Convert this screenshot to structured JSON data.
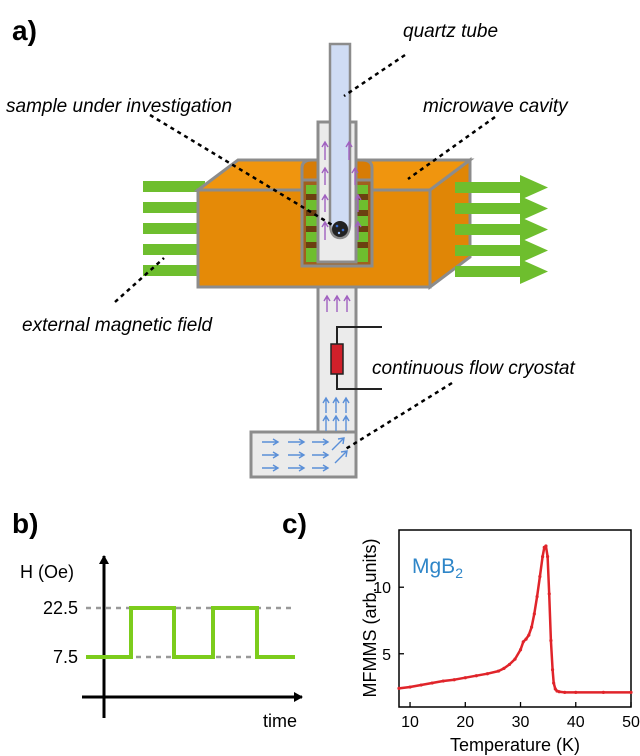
{
  "panel_labels": {
    "a": "a)",
    "b": "b)",
    "c": "c)"
  },
  "panel_a": {
    "labels": {
      "quartz_tube": "quartz tube",
      "sample": "sample under investigation",
      "cavity": "microwave cavity",
      "field": "external magnetic field",
      "cryostat": "continuous flow cryostat"
    },
    "colors": {
      "cavity_orange": "#f0950e",
      "cavity_front": "#e58a07",
      "field_green": "#6ebe2e",
      "flow_purple": "#a060c0",
      "flow_blue": "#5a8fd8",
      "heater_red": "#d0202a",
      "wall_gray": "#8c8c8c"
    }
  },
  "panel_b": {
    "ylabel": "H (Oe)",
    "xlabel": "time",
    "levels": [
      "22.5",
      "7.5"
    ],
    "waveform_color": "#7ccc1c"
  },
  "chart_data": {
    "type": "line",
    "title": "",
    "xlabel": "Temperature (K)",
    "ylabel": "MFMMS (arb. units)",
    "annotation": {
      "text": "MgB",
      "subscript": "2",
      "color": "#2f86c8"
    },
    "xlim": [
      8,
      50
    ],
    "ylim": [
      1,
      14.3
    ],
    "xticks": [
      "10",
      "20",
      "30",
      "40",
      "50"
    ],
    "yticks": [
      "5",
      "10"
    ],
    "grid": false,
    "series": [
      {
        "color": "#e0242a",
        "x": [
          8,
          10,
          12,
          14,
          16,
          18,
          20,
          22,
          24,
          26,
          27,
          28,
          29,
          30,
          30.5,
          31,
          31.5,
          32,
          32.5,
          33,
          33.5,
          34,
          34.3,
          34.6,
          34.9,
          35.2,
          35.5,
          35.8,
          36,
          36.3,
          36.6,
          37,
          38,
          40,
          45,
          50
        ],
        "y": [
          2.4,
          2.5,
          2.65,
          2.8,
          2.95,
          3.05,
          3.2,
          3.35,
          3.5,
          3.7,
          3.9,
          4.2,
          4.6,
          5.3,
          5.9,
          6.1,
          6.4,
          7.0,
          8.0,
          9.3,
          10.8,
          12.3,
          13.0,
          13.1,
          12.3,
          9.5,
          6.0,
          3.8,
          2.8,
          2.35,
          2.2,
          2.15,
          2.1,
          2.1,
          2.1,
          2.1
        ]
      }
    ]
  }
}
